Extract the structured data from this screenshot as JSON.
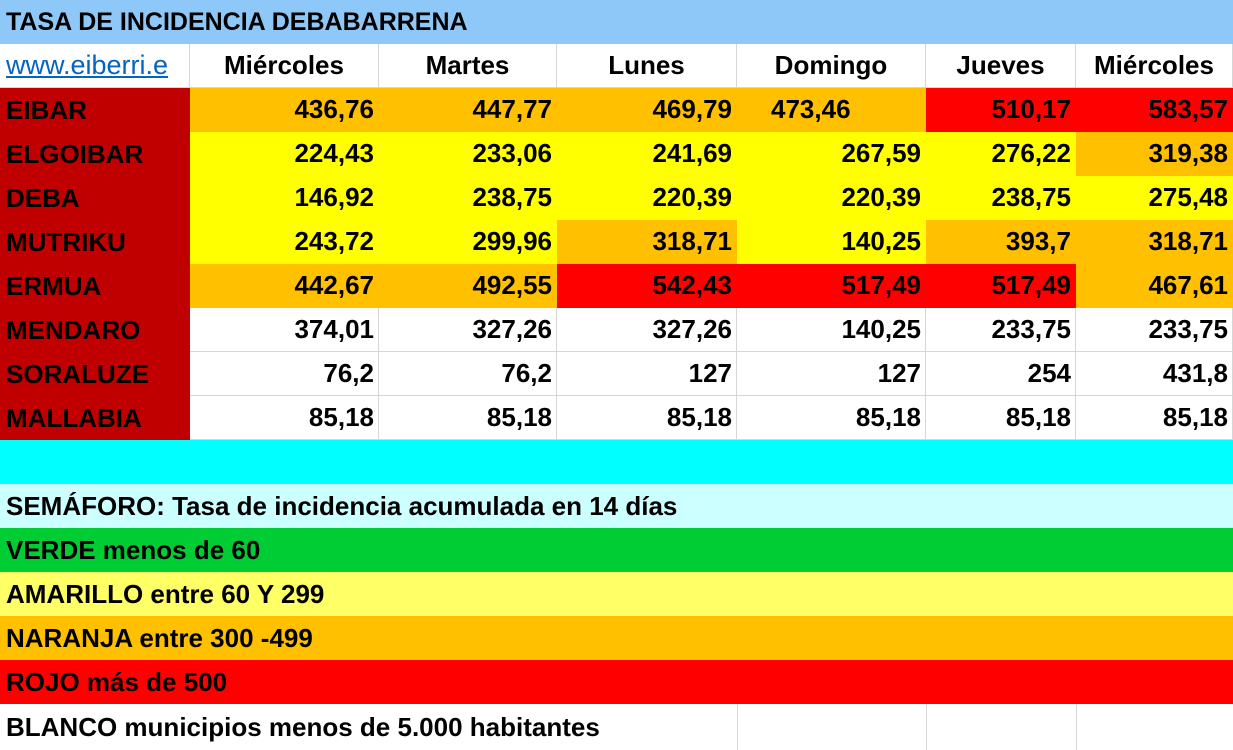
{
  "colors": {
    "title_bg": "#8ec8f8",
    "municipality_bg": "#c00000",
    "yellow": "#ffff00",
    "orange": "#ffc000",
    "red": "#ff0000",
    "white": "#ffffff",
    "cyan": "#00ffff",
    "light_cyan": "#ccffff",
    "green": "#00cc33",
    "light_yellow": "#ffff66",
    "link": "#0563c1"
  },
  "title": "TASA DE INCIDENCIA DEBABARRENA",
  "link_text": "www.eiberri.e",
  "columns": [
    "Miércoles",
    "Martes",
    "Lunes",
    "Domingo",
    "Jueves",
    "Miércoles"
  ],
  "rows": [
    {
      "name": "EIBAR",
      "values": [
        "436,76",
        "447,77",
        "469,79",
        "473,46",
        "510,17",
        "583,57"
      ],
      "levels": [
        "o",
        "o",
        "o",
        "o",
        "r",
        "r"
      ]
    },
    {
      "name": "ELGOIBAR",
      "values": [
        "224,43",
        "233,06",
        "241,69",
        "267,59",
        "276,22",
        "319,38"
      ],
      "levels": [
        "y",
        "y",
        "y",
        "y",
        "y",
        "o"
      ]
    },
    {
      "name": "DEBA",
      "values": [
        "146,92",
        "238,75",
        "220,39",
        "220,39",
        "238,75",
        "275,48"
      ],
      "levels": [
        "y",
        "y",
        "y",
        "y",
        "y",
        "y"
      ]
    },
    {
      "name": "MUTRIKU",
      "values": [
        "243,72",
        "299,96",
        "318,71",
        "140,25",
        "393,7",
        "318,71"
      ],
      "levels": [
        "y",
        "y",
        "o",
        "y",
        "o",
        "o"
      ]
    },
    {
      "name": "ERMUA",
      "values": [
        "442,67",
        "492,55",
        "542,43",
        "517,49",
        "517,49",
        "467,61"
      ],
      "levels": [
        "o",
        "o",
        "r",
        "r",
        "r",
        "o"
      ]
    },
    {
      "name": "MENDARO",
      "values": [
        "374,01",
        "327,26",
        "327,26",
        "140,25",
        "233,75",
        "233,75"
      ],
      "levels": [
        "w",
        "w",
        "w",
        "w",
        "w",
        "w"
      ]
    },
    {
      "name": "SORALUZE",
      "values": [
        "76,2",
        "76,2",
        "127",
        "127",
        "254",
        "431,8"
      ],
      "levels": [
        "w",
        "w",
        "w",
        "w",
        "w",
        "w"
      ]
    },
    {
      "name": "MALLABIA",
      "values": [
        "85,18",
        "85,18",
        "85,18",
        "85,18",
        "85,18",
        "85,18"
      ],
      "levels": [
        "w",
        "w",
        "w",
        "w",
        "w",
        "w"
      ]
    }
  ],
  "legend": {
    "heading": "SEMÁFORO:  Tasa de incidencia acumulada en 14 días",
    "verde": "VERDE menos de 60",
    "amarillo": "AMARILLO entre 60 Y 299",
    "naranja": "NARANJA entre 300 -499",
    "rojo": "ROJO más de 500",
    "blanco": "BLANCO municipios menos de 5.000 habitantes"
  }
}
